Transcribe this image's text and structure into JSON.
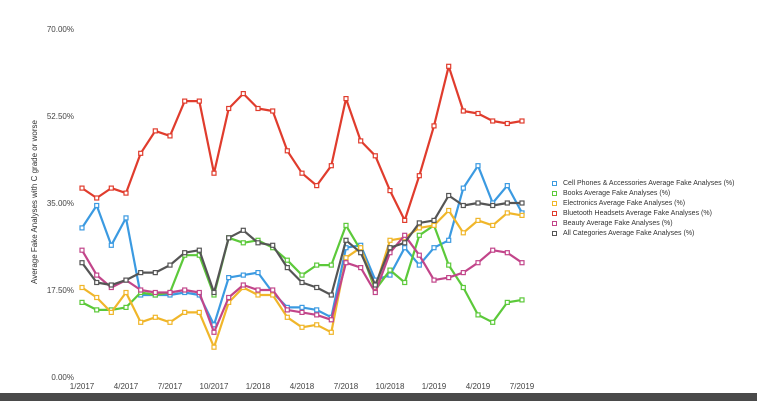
{
  "chart_data": {
    "type": "line",
    "ylabel": "Average Fake Analyses with C grade or worse",
    "xlabel": "",
    "title": "",
    "ylim": [
      0,
      70
    ],
    "y_ticks": [
      "0.00%",
      "17.50%",
      "35.00%",
      "52.50%",
      "70.00%"
    ],
    "y_tick_values": [
      0,
      17.5,
      35,
      52.5,
      70
    ],
    "x_ticks": [
      "1/2017",
      "4/2017",
      "7/2017",
      "10/2017",
      "1/2018",
      "4/2018",
      "7/2018",
      "10/2018",
      "1/2019",
      "4/2019",
      "7/2019"
    ],
    "x_tick_index": [
      0,
      3,
      6,
      9,
      12,
      15,
      18,
      21,
      24,
      27,
      30
    ],
    "grid": false,
    "legend_position": "right",
    "series": [
      {
        "name": "Cell Phones & Accessories Average Fake Analyses (%)",
        "color": "#3b9ae1",
        "values": [
          30,
          34.5,
          26.5,
          32,
          16.5,
          16.5,
          16.5,
          17,
          16.5,
          10.5,
          20,
          20.5,
          21,
          17,
          14,
          14,
          13.5,
          12,
          26,
          26.5,
          19.5,
          20.5,
          26,
          22.5,
          26,
          27.5,
          38,
          42.5,
          35,
          38.5,
          33
        ]
      },
      {
        "name": "Books Average Fake Analyses (%)",
        "color": "#5cc93a",
        "values": [
          15,
          13.5,
          13.5,
          14,
          17,
          16.5,
          17,
          24.5,
          24.5,
          16.5,
          28,
          27,
          27.5,
          26,
          23.5,
          20.5,
          22.5,
          22.5,
          30.5,
          25.5,
          17.5,
          21.5,
          19,
          28.5,
          30.5,
          22.5,
          18,
          12.5,
          11,
          15,
          15.5
        ]
      },
      {
        "name": "Electronics Average Fake Analyses (%)",
        "color": "#f0b62a",
        "values": [
          18,
          16,
          13,
          17,
          11,
          12,
          11,
          13,
          13,
          6,
          15,
          18,
          16.5,
          16.5,
          12,
          10,
          10.5,
          9,
          24,
          26,
          18,
          27.5,
          28,
          30,
          30.5,
          33.5,
          29,
          31.5,
          30.5,
          33,
          32.5
        ]
      },
      {
        "name": "Bluetooth Headsets Average Fake Analyses (%)",
        "color": "#e03c2d",
        "values": [
          38,
          36,
          38,
          37,
          45,
          49.5,
          48.5,
          55.5,
          55.5,
          41,
          54,
          57,
          54,
          53.5,
          45.5,
          41,
          38.5,
          42.5,
          56,
          47.5,
          44.5,
          37.5,
          31.5,
          40.5,
          50.5,
          62.5,
          53.5,
          53,
          51.5,
          51,
          51.5
        ]
      },
      {
        "name": "Beauty Average Fake Analyses (%)",
        "color": "#c2458a",
        "values": [
          25.5,
          20.5,
          18,
          19.5,
          17.5,
          17,
          17,
          17.5,
          17,
          9,
          16,
          18.5,
          17.5,
          17.5,
          13.5,
          13,
          12.5,
          11.5,
          23,
          22,
          17,
          25,
          28.5,
          24.5,
          19.5,
          20,
          21,
          23,
          25.5,
          25,
          23
        ]
      },
      {
        "name": "All Categories Average Fake Analyses (%)",
        "color": "#555555",
        "values": [
          23,
          19,
          18.5,
          19.5,
          21,
          21,
          22.5,
          25,
          25.5,
          17,
          28,
          29.5,
          27,
          26.5,
          22,
          19,
          18,
          16.5,
          27.5,
          25,
          18.5,
          26,
          27,
          31,
          31.5,
          36.5,
          34.5,
          35,
          34.5,
          35,
          35
        ]
      }
    ]
  }
}
